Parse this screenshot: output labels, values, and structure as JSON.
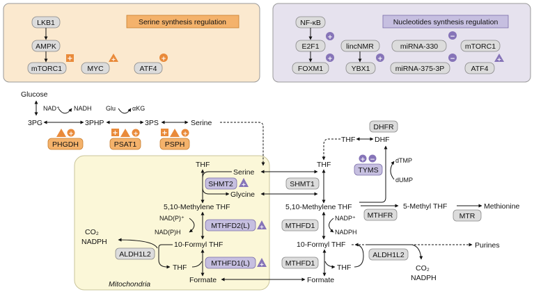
{
  "colors": {
    "serine_panel": "#fbe9cf",
    "nucleotide_panel": "#e6e2ee",
    "mito_bg": "#fbf7d8",
    "gray_box": "#dcdcdc",
    "orange_box": "#f4b26b",
    "purple_box": "#c6bfe0",
    "orange_marker": "#e98a3a",
    "purple_marker": "#8674b8"
  },
  "panels": {
    "serine": {
      "title": "Serine synthesis regulation",
      "nodes": [
        "LKB1",
        "AMPK",
        "mTORC1",
        "MYC",
        "ATF4"
      ]
    },
    "nucleotide": {
      "title": "Nucleotides synthesis regulation",
      "nodes": [
        "NF-κB",
        "E2F1",
        "FOXM1",
        "lincNMR",
        "YBX1",
        "miRNA-330",
        "mTORC1",
        "miRNA-375-3P",
        "ATF4"
      ]
    }
  },
  "metabolites": {
    "glucose": "Glucose",
    "pg3": "3PG",
    "php3": "3PHP",
    "ps3": "3PS",
    "serine": "Serine",
    "nad_plus": "NAD⁺",
    "nadh": "NADH",
    "glu": "Glu",
    "akg": "αKG",
    "thf": "THF",
    "glycine": "Glycine",
    "methylene_thf": "5,10-Methylene THF",
    "nadp_h_plus": "NAD(P)⁺",
    "nadp_h": "NAD(P)H",
    "formyl_thf": "10-Formyl THF",
    "formate": "Formate",
    "co2": "CO₂",
    "nadph": "NADPH",
    "nadp_plus": "NADP⁺",
    "dhf": "DHF",
    "dtmp": "dTMP",
    "dump": "dUMP",
    "methyl_thf": "5-Methyl THF",
    "methionine": "Methionine",
    "purines": "Purines"
  },
  "enzymes": {
    "phgdh": "PHGDH",
    "psat1": "PSAT1",
    "psph": "PSPH",
    "shmt2": "SHMT2",
    "mthfd2l": "MTHFD2(L)",
    "mthfd1l": "MTHFD1(L)",
    "aldh1l2": "ALDH1L2",
    "shmt1": "SHMT1",
    "mthfd1": "MTHFD1",
    "mthfr": "MTHFR",
    "mtr": "MTR",
    "dhfr": "DHFR",
    "tyms": "TYMS"
  },
  "compartment": "Mitochondria",
  "marker_symbols": {
    "plus": "+",
    "minus": "−"
  }
}
